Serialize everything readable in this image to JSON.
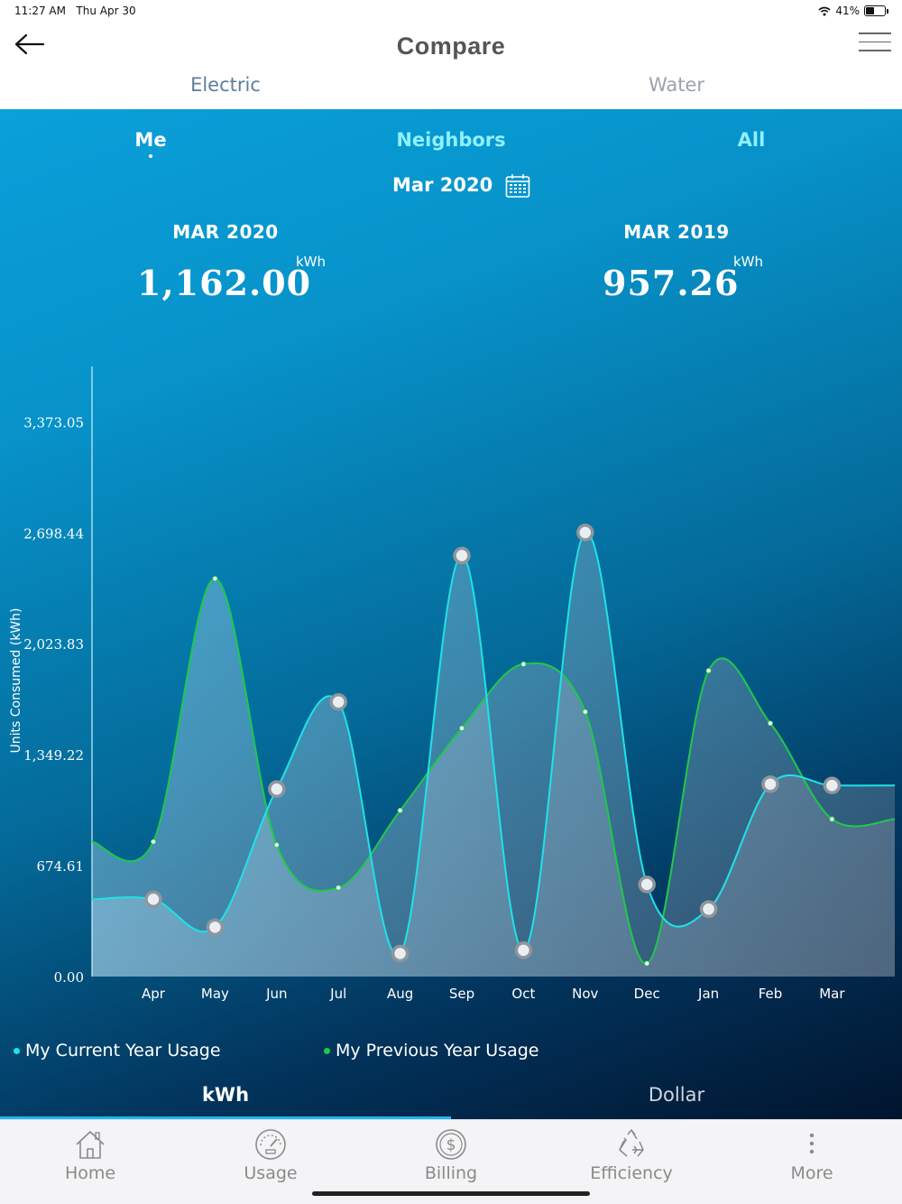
{
  "status_bar": {
    "time": "11:27 AM",
    "date": "Thu Apr 30",
    "battery": "41%"
  },
  "header": {
    "title": "Compare"
  },
  "utility_tabs": [
    {
      "label": "Electric",
      "active": true
    },
    {
      "label": "Water",
      "active": false
    }
  ],
  "view_tabs": {
    "me": "Me",
    "neighbors": "Neighbors",
    "all": "All"
  },
  "period": "Mar 2020",
  "summary": {
    "current": {
      "label": "MAR 2020",
      "value": "1,162.00",
      "unit": "kWh"
    },
    "previous": {
      "label": "MAR 2019",
      "value": "957.26",
      "unit": "kWh"
    }
  },
  "chart_data": {
    "type": "line",
    "ylabel": "Units Consumed (kWh)",
    "ylim": [
      0,
      3710
    ],
    "yticks": [
      "0.00",
      "674.61",
      "1,349.22",
      "2,023.83",
      "2,698.44",
      "3,373.05"
    ],
    "ytick_values": [
      0,
      674.61,
      1349.22,
      2023.83,
      2698.44,
      3373.05
    ],
    "categories": [
      "Apr",
      "May",
      "Jun",
      "Jul",
      "Aug",
      "Sep",
      "Oct",
      "Nov",
      "Dec",
      "Jan",
      "Feb",
      "Mar"
    ],
    "series": [
      {
        "name": "My Current Year Usage",
        "color": "#1de3e8",
        "values": [
          470,
          300,
          1140,
          1670,
          140,
          2560,
          160,
          2700,
          560,
          410,
          1170,
          1162
        ]
      },
      {
        "name": "My Previous Year Usage",
        "color": "#1ec94c",
        "values": [
          820,
          2420,
          800,
          540,
          1010,
          1510,
          1900,
          1610,
          80,
          1860,
          1540,
          957.26
        ]
      }
    ]
  },
  "unit_tabs": [
    {
      "label": "kWh",
      "active": true
    },
    {
      "label": "Dollar",
      "active": false
    }
  ],
  "bottom_nav": [
    {
      "label": "Home",
      "icon": "home-icon"
    },
    {
      "label": "Usage",
      "icon": "gauge-icon"
    },
    {
      "label": "Billing",
      "icon": "dollar-coin-icon"
    },
    {
      "label": "Efficiency",
      "icon": "recycle-icon"
    },
    {
      "label": "More",
      "icon": "more-vertical-icon"
    }
  ]
}
